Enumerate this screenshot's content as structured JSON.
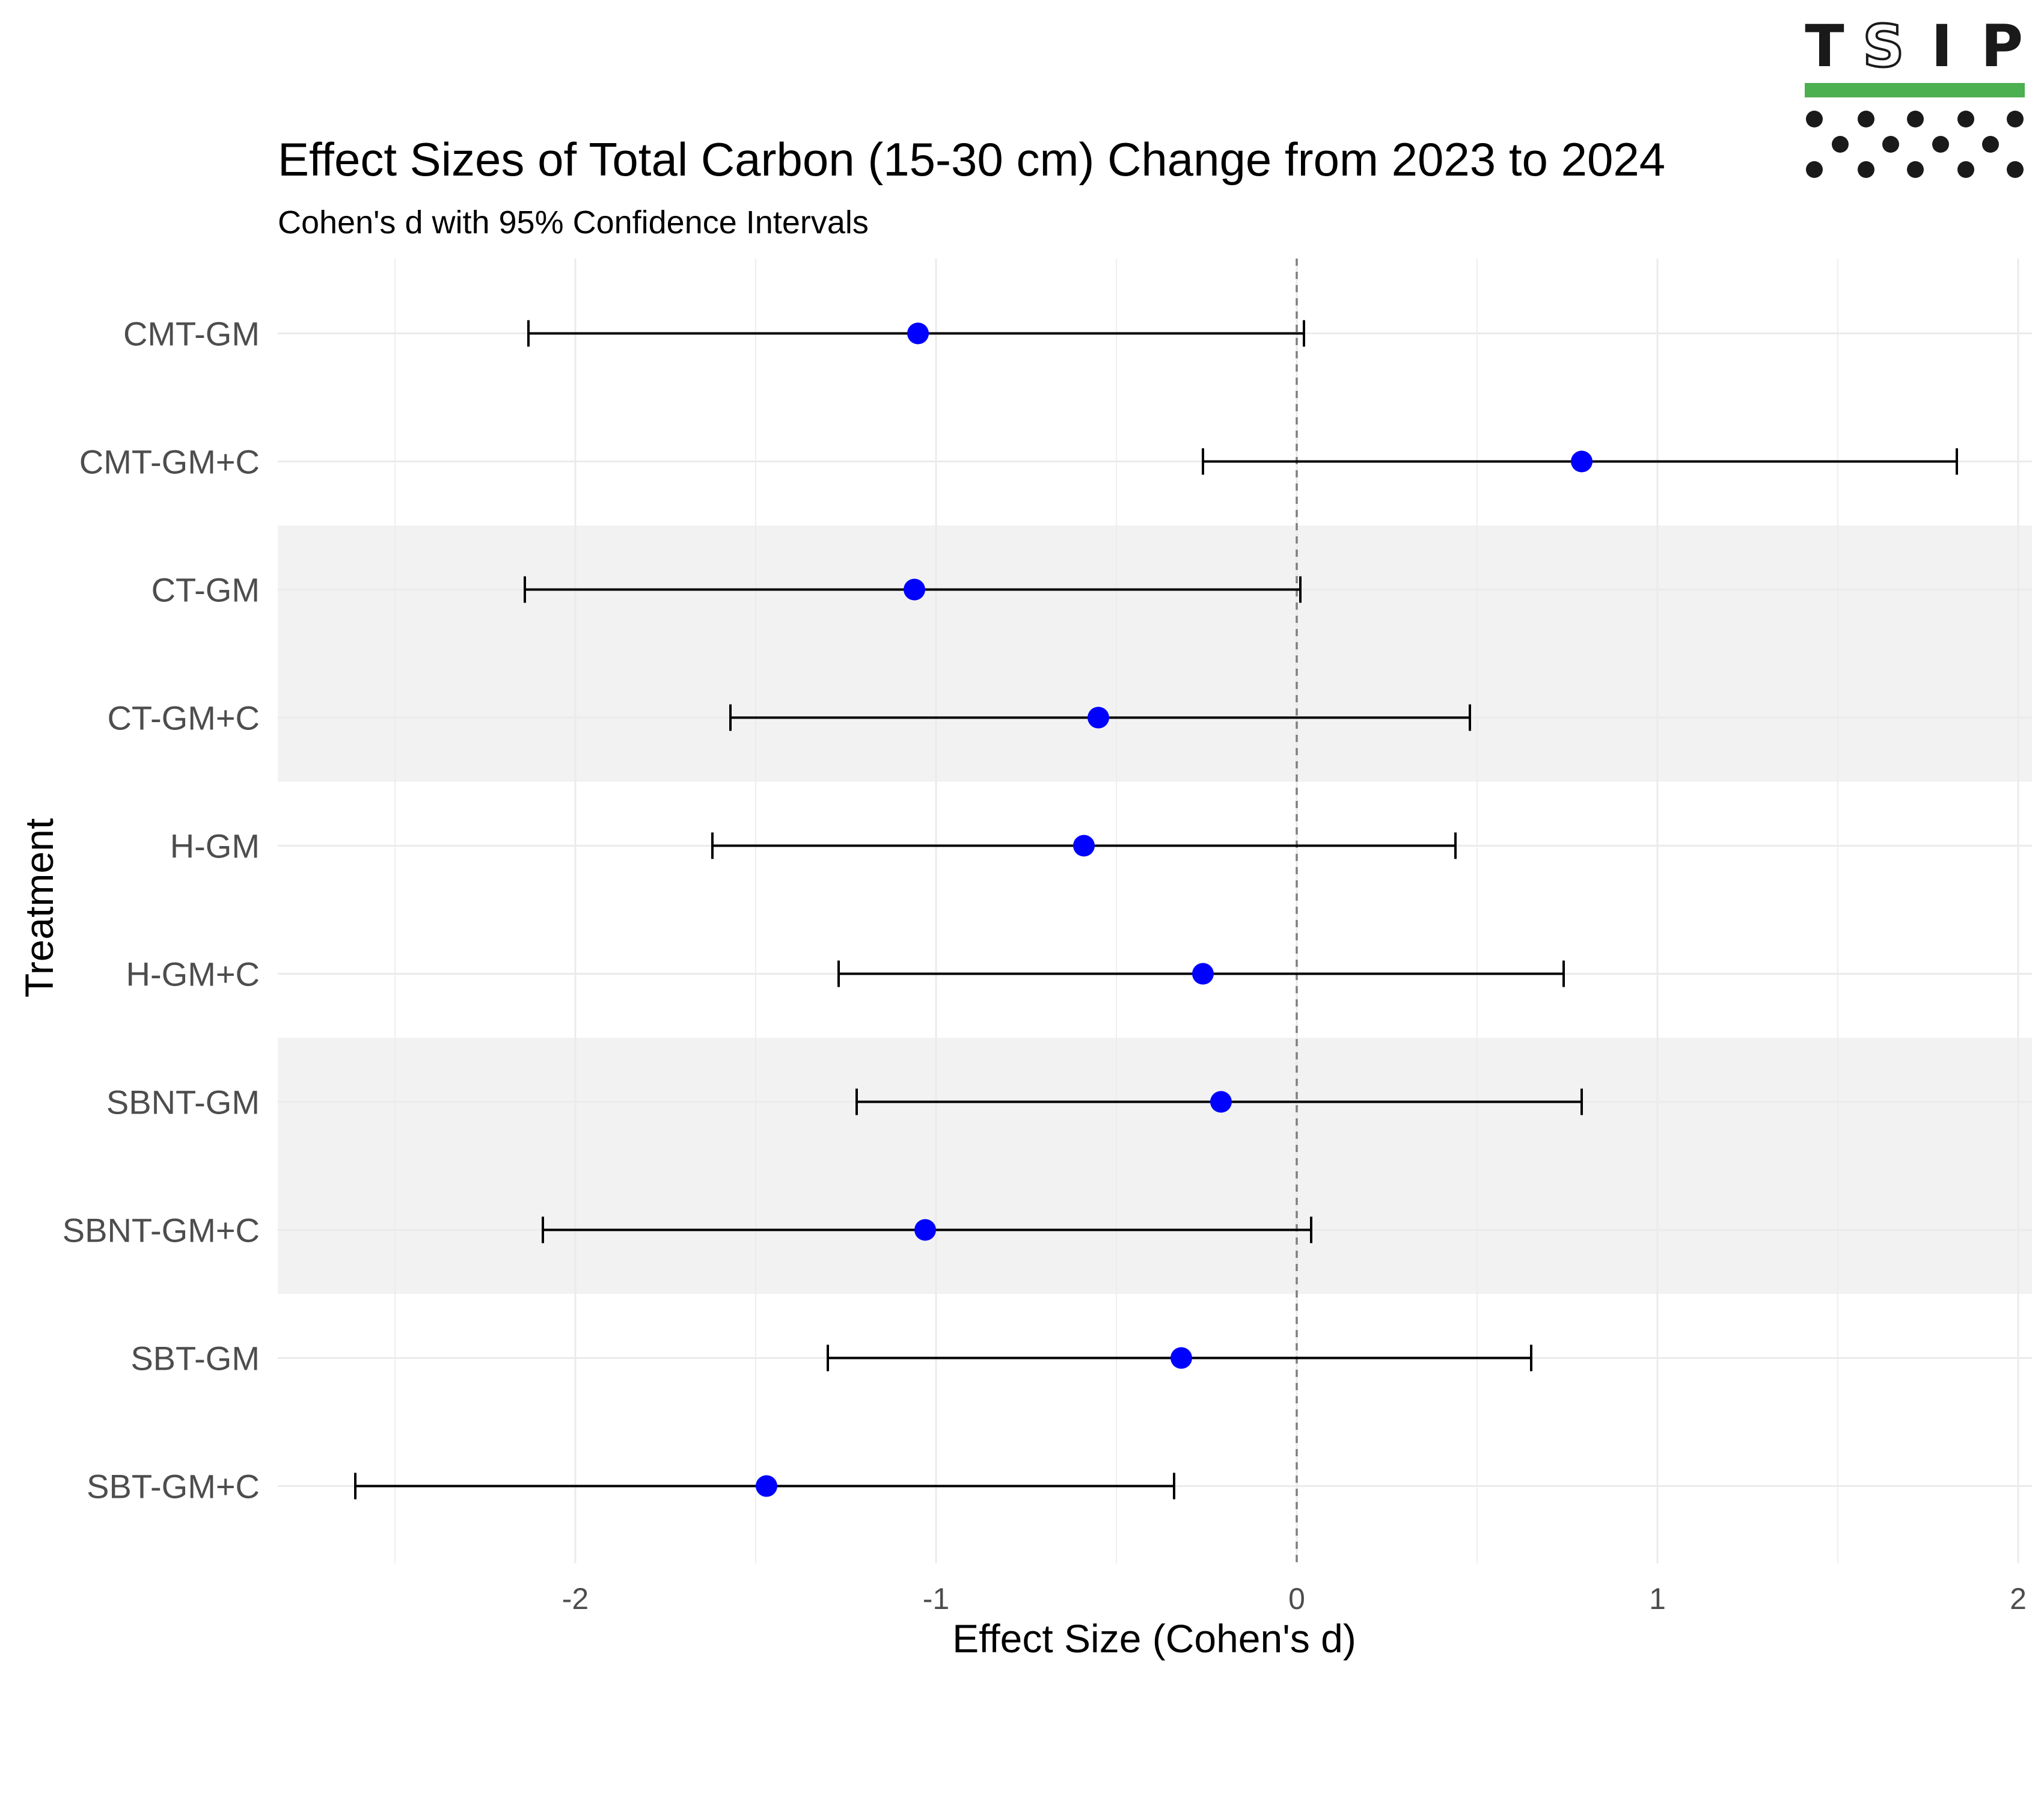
{
  "logo": {
    "letters": [
      "T",
      "S",
      "I",
      "P"
    ],
    "bar_color": "#4caf50",
    "dot_color": "#1a1a1a"
  },
  "chart_data": {
    "type": "forest",
    "title": "Effect Sizes of Total Carbon (15-30 cm) Change from 2023 to 2024",
    "subtitle": "Cohen's d with 95% Confidence Intervals",
    "xlabel": "Effect Size (Cohen's d)",
    "ylabel": "Treatment",
    "xlim": [
      -2.65,
      2.05
    ],
    "xticks": [
      -2,
      -1,
      0,
      1,
      2
    ],
    "xtick_labels": [
      "-2",
      "-1",
      "0",
      "1",
      "2"
    ],
    "reference_line": 0,
    "grid": true,
    "point_color": "#0000ff",
    "shaded_band_color": "#f2f2f2",
    "shaded_groups": [
      [
        "CT-GM",
        "CT-GM+C"
      ],
      [
        "SBNT-GM",
        "SBNT-GM+C"
      ]
    ],
    "series": [
      {
        "treatment": "CMT-GM",
        "estimate": -1.05,
        "lower": -2.13,
        "upper": 0.02
      },
      {
        "treatment": "CMT-GM+C",
        "estimate": 0.79,
        "lower": -0.26,
        "upper": 1.83
      },
      {
        "treatment": "CT-GM",
        "estimate": -1.06,
        "lower": -2.14,
        "upper": 0.01
      },
      {
        "treatment": "CT-GM+C",
        "estimate": -0.55,
        "lower": -1.57,
        "upper": 0.48
      },
      {
        "treatment": "H-GM",
        "estimate": -0.59,
        "lower": -1.62,
        "upper": 0.44
      },
      {
        "treatment": "H-GM+C",
        "estimate": -0.26,
        "lower": -1.27,
        "upper": 0.74
      },
      {
        "treatment": "SBNT-GM",
        "estimate": -0.21,
        "lower": -1.22,
        "upper": 0.79
      },
      {
        "treatment": "SBNT-GM+C",
        "estimate": -1.03,
        "lower": -2.09,
        "upper": 0.04
      },
      {
        "treatment": "SBT-GM",
        "estimate": -0.32,
        "lower": -1.3,
        "upper": 0.65
      },
      {
        "treatment": "SBT-GM+C",
        "estimate": -1.47,
        "lower": -2.61,
        "upper": -0.34
      }
    ]
  }
}
